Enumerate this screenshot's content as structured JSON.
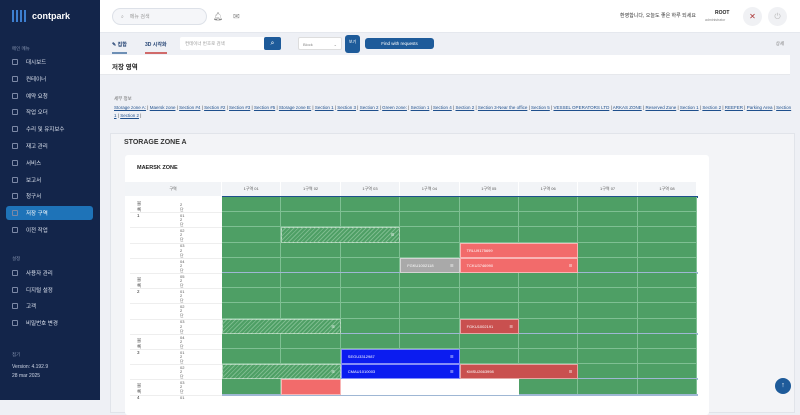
{
  "brand": "contpark",
  "sidebar": {
    "section1": "메인 메뉴",
    "items": [
      {
        "label": "대시보드"
      },
      {
        "label": "컨테이너"
      },
      {
        "label": "예약 요청"
      },
      {
        "label": "작업 오더"
      },
      {
        "label": "수리 및 유지보수"
      },
      {
        "label": "재고 관리"
      },
      {
        "label": "서비스"
      },
      {
        "label": "보고서"
      },
      {
        "label": "청구서"
      },
      {
        "label": "저장 구역",
        "active": true
      },
      {
        "label": "이전 작업"
      }
    ],
    "section2": "설정",
    "items2": [
      {
        "label": "사용자 관리"
      },
      {
        "label": "디지털 설정"
      },
      {
        "label": "고객"
      },
      {
        "label": "비밀번호 변경"
      }
    ],
    "collapse": "접기",
    "version": "Version: 4.192.9",
    "date": "28 mar 2025"
  },
  "topbar": {
    "search_placeholder": "메뉴 검색",
    "user_text": "환영합니다, 오늘도 좋은 하루 되세요",
    "user": "ROOT",
    "user_sub": "administrator"
  },
  "subbar": {
    "tab1": "집합",
    "tab2": "3D 시각화",
    "search_placeholder": "컨테이너 번호로 검색",
    "select": "Block",
    "view_btn": "보기",
    "find_btn": "Find with requests",
    "detail": "상세"
  },
  "page_title": "저장 영역",
  "legend": {
    "title": "세부 정보",
    "links": [
      "Storage zone A:",
      "Maersk zone",
      "Section #4",
      "Section #2",
      "Section #3",
      "Section #5",
      "Storage zone B:",
      "Section 1",
      "Section 3",
      "Section 2",
      "Green zone:",
      "Section 1",
      "Section 4",
      "Section 2",
      "Section 3-Near the office",
      "Section 5",
      "VESSEL OPERATORS LTD",
      "ARKAS ZONE",
      "Reserved Zone",
      "Section 1",
      "Section 2",
      "REEFER",
      "Parking Area",
      "Section 1",
      "Section 2"
    ]
  },
  "zone": {
    "title": "STORAGE ZONE A",
    "card_title": "MAERSK ZONE",
    "corner": "구역",
    "columns": [
      "1구역 01",
      "1구역 02",
      "1구역 03",
      "1구역 04",
      "1구역 05",
      "1구역 06",
      "1구역 07",
      "1구역 08"
    ],
    "groups": [
      {
        "label": "블록1",
        "rows": [
          "2단 01",
          "2단 02",
          "2단 03",
          "2단 04",
          "2단 05"
        ]
      },
      {
        "label": "블록2",
        "rows": [
          "2단 01",
          "2단 02",
          "2단 03",
          "2단 04"
        ]
      },
      {
        "label": "블록3",
        "rows": [
          "2단 01",
          "2단 02",
          "2단 03"
        ]
      },
      {
        "label": "블록4",
        "rows": [
          "2단 01"
        ]
      }
    ],
    "blocks": [
      {
        "row": 2,
        "col": 1,
        "span": 2,
        "type": "hatch",
        "label": ""
      },
      {
        "row": 3,
        "col": 4,
        "span": 2,
        "type": "red",
        "label": "TRLU9175699"
      },
      {
        "row": 4,
        "col": 3,
        "span": 1,
        "type": "gray",
        "label": "FGKU1002118"
      },
      {
        "row": 4,
        "col": 4,
        "span": 2,
        "type": "red",
        "label": "TCKU3746990"
      },
      {
        "row": 8,
        "col": 0,
        "span": 2,
        "type": "hatch",
        "label": ""
      },
      {
        "row": 8,
        "col": 4,
        "span": 1,
        "type": "darkred",
        "label": "FGKU1002191"
      },
      {
        "row": 10,
        "col": 2,
        "span": 2,
        "type": "blue",
        "label": "SEGU3312987"
      },
      {
        "row": 11,
        "col": 0,
        "span": 2,
        "type": "hatch",
        "label": ""
      },
      {
        "row": 11,
        "col": 2,
        "span": 2,
        "type": "blue",
        "label": "CMAU1010003"
      },
      {
        "row": 11,
        "col": 4,
        "span": 2,
        "type": "darkred",
        "label": "KMSU2663998"
      },
      {
        "row": 12,
        "col": 1,
        "span": 1,
        "type": "red",
        "label": ""
      },
      {
        "row": 12,
        "col": 2,
        "span": 3,
        "type": "white",
        "label": ""
      }
    ]
  },
  "colors": {
    "green": "#4e9f65",
    "red": "#f26b6b",
    "darkred": "#c9504f",
    "blue": "#0b1cf0",
    "gray": "#a9a9a9",
    "white": "#ffffff"
  }
}
